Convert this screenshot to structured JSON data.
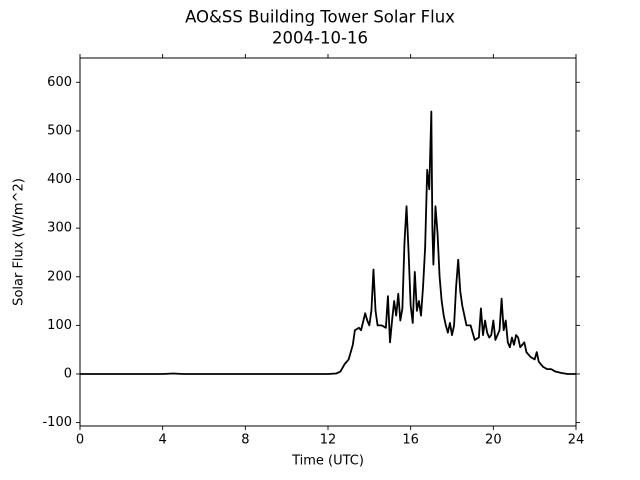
{
  "chart_data": {
    "type": "line",
    "title": "AO&SS Building Tower Solar Flux",
    "subtitle": "2004-10-16",
    "x_label": "Time (UTC)",
    "y_label": "Solar Flux (W/m^2)",
    "x": [
      0,
      4,
      4.5,
      5,
      8,
      12,
      12.4,
      12.6,
      12.8,
      13.0,
      13.2,
      13.3,
      13.5,
      13.6,
      13.8,
      13.9,
      14.0,
      14.1,
      14.2,
      14.3,
      14.4,
      14.6,
      14.8,
      14.9,
      15.0,
      15.1,
      15.2,
      15.3,
      15.4,
      15.5,
      15.6,
      15.7,
      15.8,
      15.9,
      16.0,
      16.1,
      16.2,
      16.3,
      16.4,
      16.5,
      16.6,
      16.7,
      16.8,
      16.9,
      17.0,
      17.05,
      17.1,
      17.2,
      17.3,
      17.4,
      17.5,
      17.6,
      17.7,
      17.8,
      17.9,
      18.0,
      18.1,
      18.2,
      18.3,
      18.4,
      18.5,
      18.7,
      18.9,
      19.1,
      19.3,
      19.4,
      19.5,
      19.6,
      19.7,
      19.8,
      19.9,
      20.0,
      20.1,
      20.3,
      20.4,
      20.5,
      20.6,
      20.7,
      20.8,
      20.9,
      21.0,
      21.1,
      21.2,
      21.3,
      21.5,
      21.6,
      21.8,
      22.0,
      22.1,
      22.2,
      22.4,
      22.6,
      22.8,
      23.0,
      23.3,
      23.6,
      24
    ],
    "series": [
      {
        "name": "Solar Flux",
        "color": "#000000",
        "values": [
          0,
          0,
          1,
          0,
          0,
          0,
          1,
          5,
          20,
          30,
          60,
          90,
          95,
          90,
          125,
          110,
          100,
          130,
          215,
          130,
          100,
          100,
          95,
          160,
          65,
          110,
          150,
          120,
          165,
          110,
          135,
          270,
          345,
          250,
          140,
          105,
          210,
          130,
          150,
          120,
          180,
          260,
          420,
          380,
          540,
          300,
          225,
          345,
          290,
          200,
          150,
          120,
          100,
          85,
          105,
          80,
          100,
          180,
          235,
          170,
          140,
          100,
          100,
          70,
          75,
          135,
          80,
          110,
          85,
          75,
          80,
          110,
          70,
          90,
          155,
          90,
          110,
          65,
          55,
          75,
          60,
          80,
          75,
          55,
          65,
          45,
          35,
          30,
          45,
          25,
          15,
          10,
          10,
          5,
          2,
          0,
          0
        ]
      }
    ],
    "xlim": [
      0,
      24
    ],
    "xticks": [
      0,
      4,
      8,
      12,
      16,
      20,
      24
    ],
    "ylim": [
      -107,
      650
    ],
    "yticks": [
      -100,
      0,
      100,
      200,
      300,
      400,
      500,
      600
    ]
  }
}
